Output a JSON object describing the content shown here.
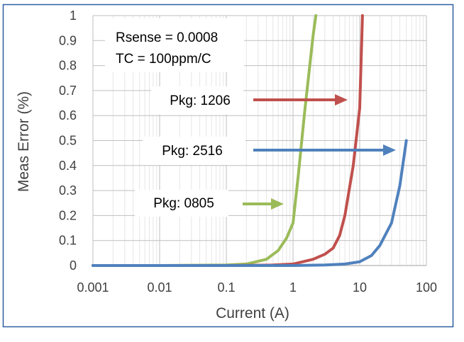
{
  "chart_data": {
    "type": "line",
    "title": "",
    "xlabel": "Current (A)",
    "ylabel": "Meas Error (%)",
    "x_scale": "log",
    "xlim": [
      0.001,
      100
    ],
    "ylim": [
      0,
      1
    ],
    "x_ticks": [
      "0.001",
      "0.01",
      "0.1",
      "1",
      "10",
      "100"
    ],
    "y_ticks": [
      "0",
      "0.1",
      "0.2",
      "0.3",
      "0.4",
      "0.5",
      "0.6",
      "0.7",
      "0.8",
      "0.9",
      "1"
    ],
    "grid": true,
    "annotations": {
      "params_line1": "Rsense = 0.0008",
      "params_line2": "TC = 100ppm/C"
    },
    "series": [
      {
        "name": "Pkg: 0805",
        "color": "#9bbb59",
        "x": [
          0.001,
          0.01,
          0.1,
          0.2,
          0.4,
          0.6,
          0.8,
          1.0,
          1.2,
          1.5,
          2.0,
          2.2
        ],
        "y": [
          0,
          0,
          0.002,
          0.006,
          0.025,
          0.06,
          0.11,
          0.17,
          0.36,
          0.62,
          0.92,
          1.0
        ]
      },
      {
        "name": "Pkg: 1206",
        "color": "#c0504d",
        "x": [
          0.001,
          0.1,
          0.5,
          1.0,
          2.0,
          3.0,
          4.0,
          5.0,
          6.0,
          8.0,
          10.0,
          11.0
        ],
        "y": [
          0,
          0,
          0.002,
          0.006,
          0.025,
          0.045,
          0.07,
          0.12,
          0.2,
          0.4,
          0.63,
          1.0
        ]
      },
      {
        "name": "Pkg: 2516",
        "color": "#4f81bd",
        "x": [
          0.001,
          1.0,
          3.0,
          6.0,
          10.0,
          15.0,
          20.0,
          30.0,
          40.0,
          50.0
        ],
        "y": [
          0,
          0,
          0.002,
          0.006,
          0.015,
          0.04,
          0.08,
          0.17,
          0.32,
          0.5
        ]
      }
    ]
  }
}
